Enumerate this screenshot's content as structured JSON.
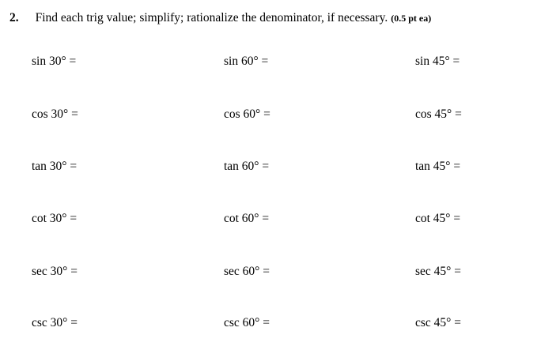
{
  "colors": {
    "background": "#ffffff",
    "text": "#000000"
  },
  "header": {
    "number": "2.",
    "instruction": "Find each trig value; simplify; rationalize the denominator, if necessary.",
    "points_note": "(0.5 pt ea)"
  },
  "worksheet": {
    "functions": [
      "sin",
      "cos",
      "tan",
      "cot",
      "sec",
      "csc"
    ],
    "angles": [
      "30°",
      "60°",
      "45°"
    ],
    "cells": [
      [
        "sin 30° =",
        "sin 60° =",
        "sin 45° ="
      ],
      [
        "cos 30° =",
        "cos 60° =",
        "cos 45° ="
      ],
      [
        "tan 30° =",
        "tan 60° =",
        "tan 45° ="
      ],
      [
        "cot 30° =",
        "cot 60° =",
        "cot 45° ="
      ],
      [
        "sec 30° =",
        "sec 60° =",
        "sec 45° ="
      ],
      [
        "csc 30° =",
        "csc 60° =",
        "csc 45° ="
      ]
    ]
  }
}
